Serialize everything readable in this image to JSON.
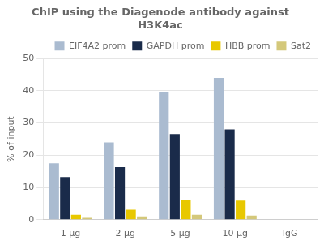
{
  "chart_data": {
    "type": "bar",
    "title": "ChIP using the Diagenode antibody against\nH3K4ac",
    "ylabel": "% of input",
    "categories": [
      "1 μg",
      "2 μg",
      "5 μg",
      "10 μg",
      "IgG"
    ],
    "series": [
      {
        "name": "EIF4A2 prom",
        "color": "#aabbd0",
        "values": [
          17.5,
          24.0,
          39.5,
          44.0,
          0.0
        ]
      },
      {
        "name": "GAPDH prom",
        "color": "#1a2b4a",
        "values": [
          13.2,
          16.3,
          26.6,
          28.0,
          0.0
        ]
      },
      {
        "name": "HBB prom",
        "color": "#e8c800",
        "values": [
          1.5,
          3.1,
          6.1,
          5.9,
          0.0
        ]
      },
      {
        "name": "Sat2",
        "color": "#d4c87a",
        "values": [
          0.6,
          1.0,
          1.5,
          1.3,
          0.0
        ]
      }
    ],
    "ylim": [
      0,
      50
    ],
    "yticks": [
      0,
      10,
      20,
      30,
      40,
      50
    ],
    "grid": true,
    "legend": "upper right"
  }
}
